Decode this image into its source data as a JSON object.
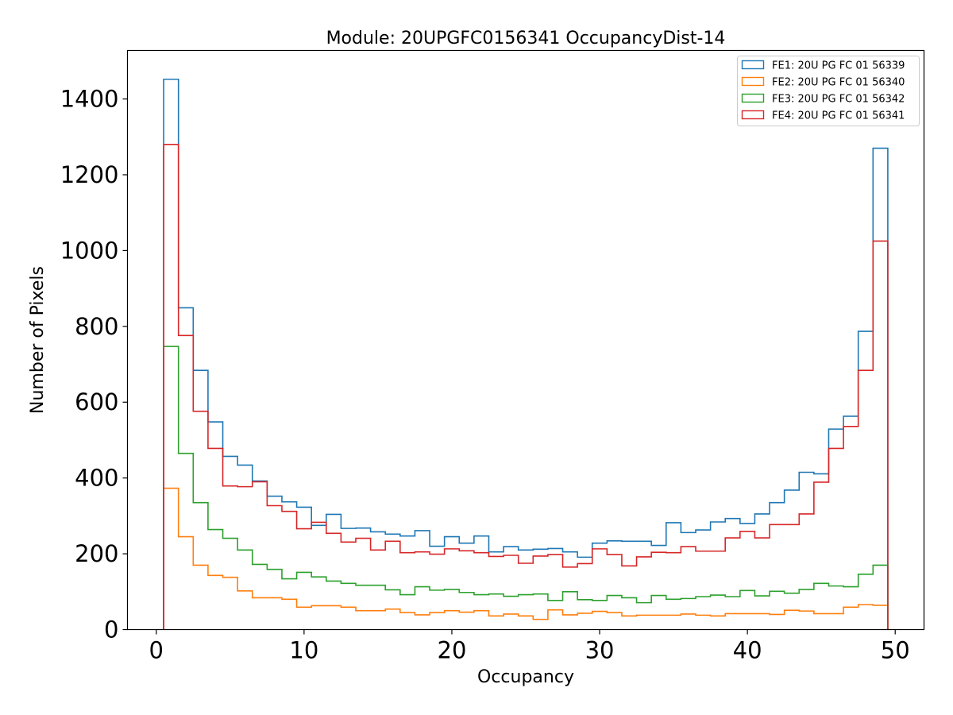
{
  "chart_data": {
    "type": "histogram-step",
    "title": "Module: 20UPGFC0156341 OccupancyDist-14",
    "xlabel": "Occupancy",
    "ylabel": "Number of Pixels",
    "xlim": [
      -1.95,
      51.95
    ],
    "ylim": [
      0,
      1528
    ],
    "xticks": [
      0,
      10,
      20,
      30,
      40,
      50
    ],
    "xtick_labels": [
      "0",
      "10",
      "20",
      "30",
      "40",
      "50"
    ],
    "yticks": [
      0,
      200,
      400,
      600,
      800,
      1000,
      1200,
      1400
    ],
    "ytick_labels": [
      "0",
      "200",
      "400",
      "600",
      "800",
      "1000",
      "1200",
      "1400"
    ],
    "bin_start": 0.5,
    "bin_width": 1,
    "grid": false,
    "legend_position": "top-right",
    "series": [
      {
        "name": "FE1: 20U PG FC 01 56339",
        "color": "#1f77b4",
        "values": [
          1452,
          849,
          684,
          548,
          457,
          434,
          392,
          352,
          337,
          323,
          275,
          304,
          267,
          268,
          258,
          252,
          247,
          261,
          220,
          245,
          228,
          247,
          205,
          219,
          210,
          212,
          214,
          205,
          191,
          228,
          234,
          233,
          233,
          222,
          282,
          256,
          263,
          284,
          293,
          280,
          305,
          335,
          368,
          415,
          411,
          529,
          563,
          787,
          1270
        ]
      },
      {
        "name": "FE2: 20U PG FC 01 56340",
        "color": "#ff7f0e",
        "values": [
          373,
          245,
          170,
          143,
          138,
          102,
          84,
          84,
          80,
          59,
          63,
          63,
          59,
          50,
          50,
          54,
          45,
          39,
          45,
          50,
          46,
          50,
          36,
          41,
          36,
          27,
          52,
          39,
          43,
          48,
          45,
          36,
          38,
          38,
          38,
          41,
          38,
          36,
          42,
          42,
          42,
          40,
          51,
          49,
          42,
          42,
          59,
          66,
          64
        ]
      },
      {
        "name": "FE3: 20U PG FC 01 56342",
        "color": "#2ca02c",
        "values": [
          747,
          465,
          335,
          264,
          241,
          210,
          172,
          159,
          134,
          151,
          139,
          128,
          122,
          117,
          117,
          105,
          92,
          113,
          104,
          106,
          98,
          92,
          94,
          88,
          92,
          94,
          77,
          100,
          79,
          77,
          90,
          84,
          71,
          90,
          80,
          82,
          87,
          91,
          87,
          103,
          89,
          101,
          96,
          106,
          122,
          115,
          113,
          146,
          170
        ]
      },
      {
        "name": "FE4: 20U PG FC 01 56341",
        "color": "#d62728",
        "values": [
          1280,
          776,
          576,
          478,
          379,
          377,
          390,
          327,
          312,
          266,
          283,
          254,
          231,
          241,
          210,
          233,
          203,
          205,
          199,
          213,
          208,
          203,
          193,
          196,
          175,
          194,
          198,
          165,
          174,
          213,
          198,
          168,
          192,
          204,
          203,
          219,
          207,
          207,
          242,
          259,
          242,
          277,
          277,
          305,
          389,
          478,
          536,
          684,
          1025
        ]
      }
    ]
  }
}
